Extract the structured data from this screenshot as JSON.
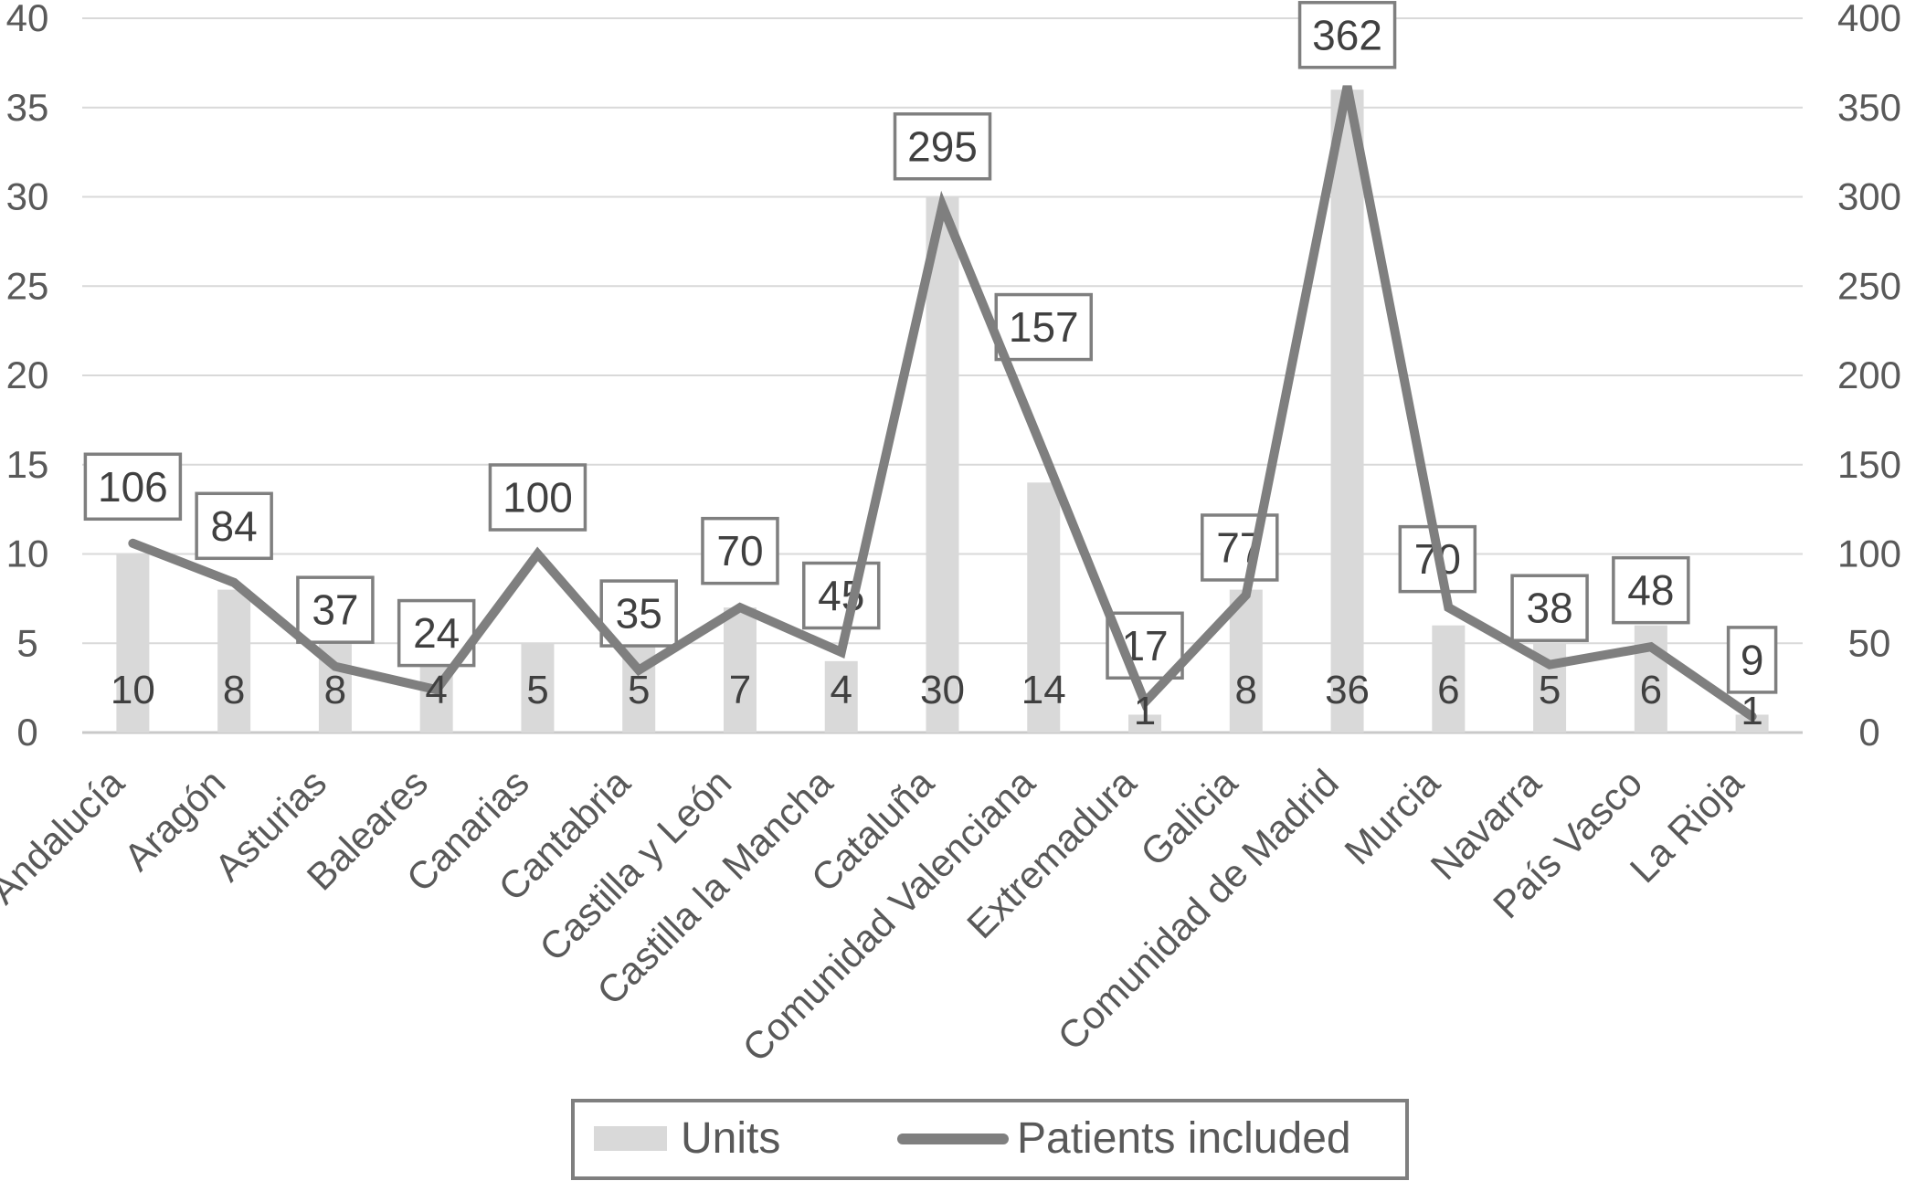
{
  "chart_data": {
    "type": "bar",
    "subtype": "combo-bar-line",
    "title": "",
    "xlabel": "",
    "ylabel_left": "",
    "ylabel_right": "",
    "categories": [
      "Andalucía",
      "Aragón",
      "Asturias",
      "Baleares",
      "Canarias",
      "Cantabria",
      "Castilla y León",
      "Castilla la Mancha",
      "Cataluña",
      "Comunidad Valenciana",
      "Extremadura",
      "Galicia",
      "Comunidad de Madrid",
      "Murcia",
      "Navarra",
      "País Vasco",
      "La Rioja"
    ],
    "series": [
      {
        "name": "Units",
        "type": "bar",
        "axis": "left",
        "values": [
          10,
          8,
          8,
          4,
          5,
          5,
          7,
          4,
          30,
          14,
          1,
          8,
          36,
          6,
          5,
          6,
          1
        ]
      },
      {
        "name": "Patients included",
        "type": "line",
        "axis": "right",
        "values": [
          106,
          84,
          37,
          24,
          100,
          35,
          70,
          45,
          295,
          157,
          17,
          77,
          362,
          70,
          38,
          48,
          9
        ]
      }
    ],
    "left_axis": {
      "min": 0,
      "max": 40,
      "step": 5,
      "tick_labels": [
        "0",
        "5",
        "10",
        "15",
        "20",
        "25",
        "30",
        "35",
        "40"
      ]
    },
    "right_axis": {
      "min": 0,
      "max": 400,
      "step": 50,
      "tick_labels": [
        "0",
        "50",
        "100",
        "150",
        "200",
        "250",
        "300",
        "350",
        "400"
      ]
    },
    "grid": true,
    "legend_position": "bottom",
    "bar_label_style": "inside-base",
    "line_label_style": "boxed-above-point"
  },
  "legend": {
    "items": [
      {
        "label": "Units",
        "swatch": "bar-swatch"
      },
      {
        "label": "Patients included",
        "swatch": "line-swatch"
      }
    ]
  },
  "colors": {
    "bar_fill": "#d9d9d9",
    "line_stroke": "#7f7f7f",
    "label_box_border": "#7f7f7f",
    "label_box_fill": "#ffffff",
    "gridline": "#d9d9d9",
    "axis_line": "#c9c9c9",
    "tick_text": "#595959",
    "data_label_text": "#404040",
    "legend_border": "#7f7f7f",
    "legend_text": "#595959"
  }
}
